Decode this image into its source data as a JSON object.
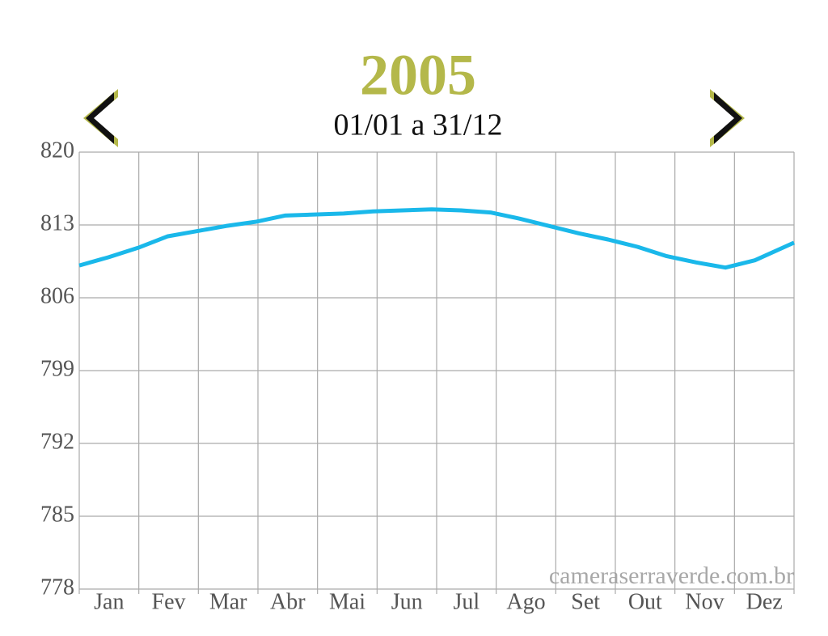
{
  "chart_data": {
    "type": "line",
    "title": "2005",
    "subtitle": "01/01 a 31/12",
    "watermark": "cameraserraverde.com.br",
    "categories": [
      "Jan",
      "Fev",
      "Mar",
      "Abr",
      "Mai",
      "Jun",
      "Jul",
      "Ago",
      "Set",
      "Out",
      "Nov",
      "Dez"
    ],
    "x": [
      0,
      15,
      30,
      45,
      60,
      75,
      90,
      105,
      120,
      135,
      150,
      165,
      180,
      195,
      210,
      225,
      240,
      255,
      270,
      285,
      300,
      315,
      330,
      345,
      365
    ],
    "xlim": [
      0,
      365
    ],
    "series": [
      {
        "color": "#1ab8ea",
        "values": [
          809.1,
          809.9,
          810.8,
          811.9,
          812.4,
          812.9,
          813.3,
          813.9,
          814.0,
          814.1,
          814.3,
          814.4,
          814.5,
          814.4,
          814.2,
          813.6,
          812.9,
          812.2,
          811.6,
          810.9,
          810.0,
          809.4,
          808.9,
          809.6,
          811.3
        ]
      }
    ],
    "ylim": [
      778,
      820
    ],
    "yticks": [
      820,
      813,
      806,
      799,
      792,
      785,
      778
    ],
    "grid": true
  }
}
